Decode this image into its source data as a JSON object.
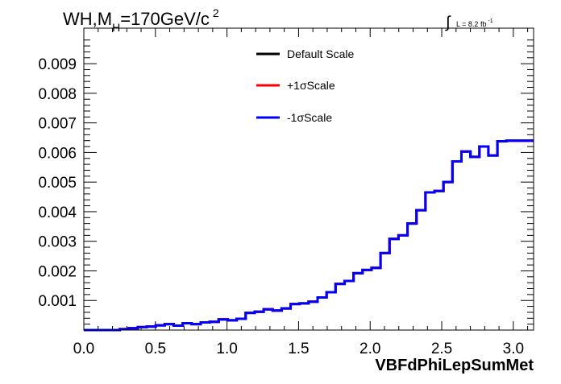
{
  "chart_data": {
    "type": "line",
    "title": {
      "prefix": "WH,M",
      "subscript": "H",
      "main": "=170GeV/c",
      "superscript": "2"
    },
    "lumi": {
      "integral": "∫",
      "text": "L = 8.2 fb",
      "exponent": "-1"
    },
    "xlabel": "VBFdPhiLepSumMet",
    "ylabel": "",
    "xlim": [
      0,
      3.1416
    ],
    "ylim": [
      0,
      0.0102
    ],
    "xticks": [
      0.0,
      0.5,
      1.0,
      1.5,
      2.0,
      2.5,
      3.0
    ],
    "xtick_labels": [
      "0.0",
      "0.5",
      "1.0",
      "1.5",
      "2.0",
      "2.5",
      "3.0"
    ],
    "yticks": [
      0.001,
      0.002,
      0.003,
      0.004,
      0.005,
      0.006,
      0.007,
      0.008,
      0.009
    ],
    "ytick_labels": [
      "0.001",
      "0.002",
      "0.003",
      "0.004",
      "0.005",
      "0.006",
      "0.007",
      "0.008",
      "0.009"
    ],
    "bin_width": 0.0628,
    "legend_placement": "top-center",
    "series": [
      {
        "name": "Default Scale",
        "color": "#000000",
        "values": [
          0.0,
          0.0,
          0.0,
          0.0,
          3e-05,
          6e-05,
          0.0001,
          0.00012,
          0.00016,
          0.0002,
          0.00015,
          0.00023,
          0.0002,
          0.00026,
          0.00028,
          0.00036,
          0.00033,
          0.00038,
          0.00058,
          0.00062,
          0.0007,
          0.00066,
          0.00073,
          0.00088,
          0.0009,
          0.00096,
          0.0011,
          0.00128,
          0.00156,
          0.00166,
          0.00192,
          0.00203,
          0.0021,
          0.0026,
          0.00308,
          0.0032,
          0.0036,
          0.00405,
          0.00465,
          0.0047,
          0.005,
          0.0057,
          0.00603,
          0.00585,
          0.0062,
          0.0059,
          0.00638,
          0.0064,
          0.0064,
          0.0064
        ]
      },
      {
        "name": "+1σScale",
        "color": "#ff0000",
        "values": [
          0.0,
          0.0,
          0.0,
          0.0,
          3e-05,
          6e-05,
          0.0001,
          0.00012,
          0.00016,
          0.0002,
          0.00015,
          0.00023,
          0.0002,
          0.00026,
          0.00028,
          0.00036,
          0.00033,
          0.00038,
          0.00058,
          0.00062,
          0.0007,
          0.00066,
          0.00073,
          0.00088,
          0.0009,
          0.00096,
          0.0011,
          0.00128,
          0.00156,
          0.00166,
          0.00192,
          0.00203,
          0.0021,
          0.0026,
          0.00308,
          0.0032,
          0.0036,
          0.00405,
          0.00465,
          0.0047,
          0.005,
          0.0057,
          0.00603,
          0.00585,
          0.0062,
          0.0059,
          0.00638,
          0.0064,
          0.0064,
          0.0064
        ]
      },
      {
        "name": "-1σScale",
        "color": "#0000ff",
        "values": [
          0.0,
          0.0,
          0.0,
          0.0,
          3e-05,
          6e-05,
          0.0001,
          0.00012,
          0.00016,
          0.0002,
          0.00015,
          0.00023,
          0.0002,
          0.00026,
          0.00028,
          0.00036,
          0.00033,
          0.00038,
          0.00058,
          0.00062,
          0.0007,
          0.00066,
          0.00073,
          0.00088,
          0.0009,
          0.00096,
          0.0011,
          0.00128,
          0.00156,
          0.00166,
          0.00192,
          0.00203,
          0.0021,
          0.0026,
          0.00308,
          0.0032,
          0.0036,
          0.00405,
          0.00465,
          0.0047,
          0.005,
          0.0057,
          0.00603,
          0.00585,
          0.0062,
          0.0059,
          0.00638,
          0.0064,
          0.0064,
          0.0064
        ]
      }
    ]
  }
}
